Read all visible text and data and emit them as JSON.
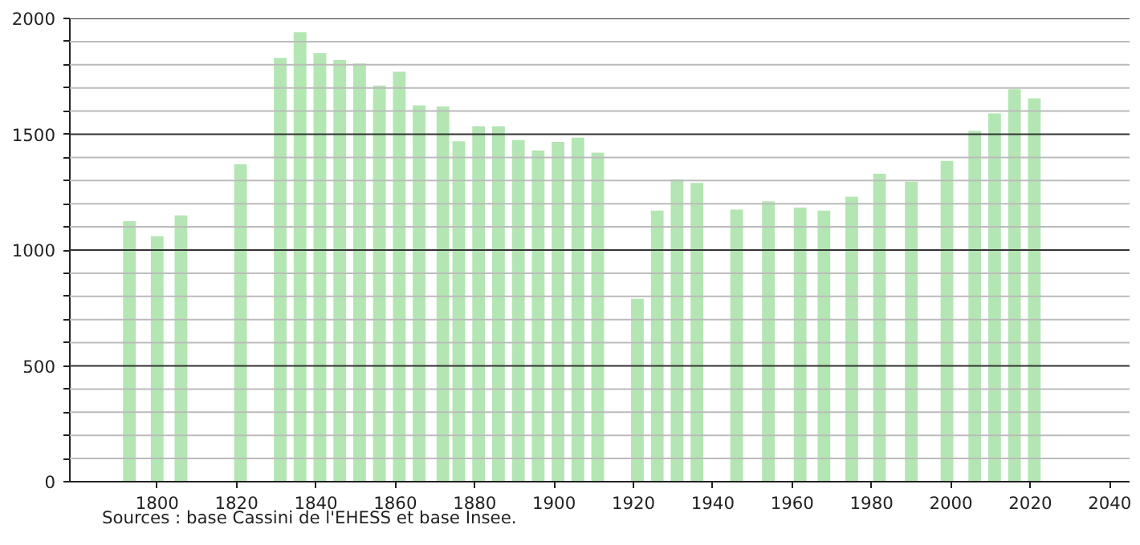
{
  "chart_data": {
    "type": "bar",
    "x": [
      1793,
      1800,
      1806,
      1821,
      1831,
      1836,
      1841,
      1846,
      1851,
      1856,
      1861,
      1866,
      1872,
      1876,
      1881,
      1886,
      1891,
      1896,
      1901,
      1906,
      1911,
      1921,
      1926,
      1931,
      1936,
      1946,
      1954,
      1962,
      1968,
      1975,
      1982,
      1990,
      1999,
      2006,
      2011,
      2016,
      2021
    ],
    "values": [
      1125,
      1060,
      1150,
      1370,
      1830,
      1940,
      1850,
      1820,
      1805,
      1710,
      1770,
      1625,
      1620,
      1470,
      1535,
      1535,
      1475,
      1430,
      1467,
      1485,
      1420,
      790,
      1170,
      1305,
      1290,
      1175,
      1210,
      1183,
      1170,
      1230,
      1330,
      1295,
      1385,
      1515,
      1590,
      1695,
      1655
    ],
    "color": "#b3e6b3",
    "xlim": [
      1778,
      2045
    ],
    "xticks": [
      1800,
      1820,
      1840,
      1860,
      1880,
      1900,
      1920,
      1940,
      1960,
      1980,
      2000,
      2020,
      2040
    ],
    "ylim": [
      0,
      2000
    ],
    "yticks": [
      0,
      {
        "value": 100,
        "label": null
      },
      {
        "value": 200,
        "label": null
      },
      {
        "value": 300,
        "label": null
      },
      {
        "value": 400,
        "label": null
      },
      500,
      {
        "value": 600,
        "label": null
      },
      {
        "value": 700,
        "label": null
      },
      {
        "value": 800,
        "label": null
      },
      {
        "value": 900,
        "label": null
      },
      1000,
      {
        "value": 1100,
        "label": null
      },
      {
        "value": 1200,
        "label": null
      },
      {
        "value": 1300,
        "label": null
      },
      {
        "value": 1400,
        "label": null
      },
      1500,
      {
        "value": 1600,
        "label": null
      },
      {
        "value": 1700,
        "label": null
      },
      {
        "value": 1800,
        "label": null
      },
      {
        "value": 1900,
        "label": null
      },
      2000
    ],
    "grid": "y",
    "annotations": [
      "Sources : base Cassini de l'EHESS et base Insee."
    ]
  }
}
